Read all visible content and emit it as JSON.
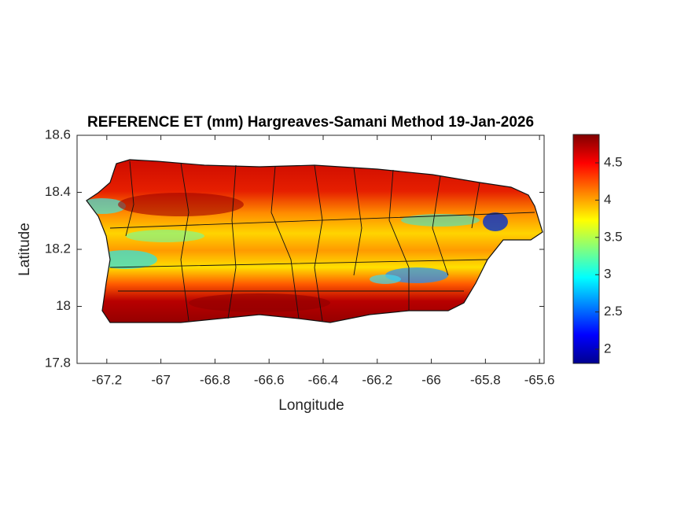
{
  "chart_data": {
    "type": "map",
    "title": "REFERENCE ET (mm) Hargreaves-Samani Method  19-Jan-2026",
    "x_label": "Longitude",
    "y_label": "Latitude",
    "xlim": [
      -67.31,
      -65.583
    ],
    "ylim": [
      17.8,
      18.6
    ],
    "xticks": [
      -67.2,
      -67,
      -66.8,
      -66.6,
      -66.4,
      -66.2,
      -66,
      -65.8,
      -65.6
    ],
    "yticks": [
      17.8,
      18,
      18.2,
      18.4,
      18.6
    ],
    "colorbar_lim": [
      1.81,
      4.88
    ],
    "colorbar_ticks": [
      2,
      2.5,
      3,
      3.5,
      4,
      4.5
    ],
    "colormap": "jet"
  }
}
